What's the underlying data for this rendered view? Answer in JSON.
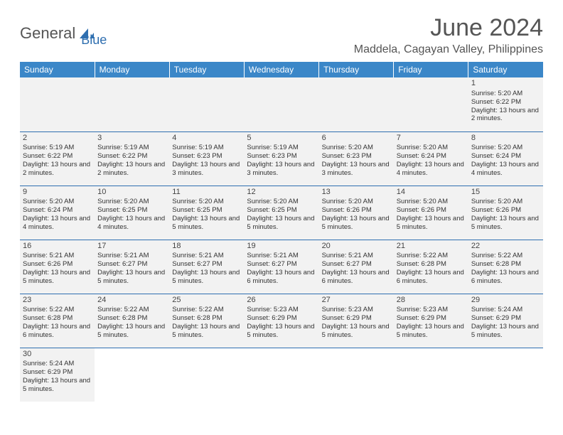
{
  "logo": {
    "part1": "General",
    "part2": "Blue"
  },
  "title": "June 2024",
  "location": "Maddela, Cagayan Valley, Philippines",
  "colors": {
    "header_bg": "#3b87c8",
    "header_text": "#ffffff",
    "row_bg": "#f2f2f2",
    "border": "#2f6fb0",
    "logo_gray": "#555555",
    "logo_blue": "#2f6fb0"
  },
  "weekdays": [
    "Sunday",
    "Monday",
    "Tuesday",
    "Wednesday",
    "Thursday",
    "Friday",
    "Saturday"
  ],
  "weeks": [
    [
      null,
      null,
      null,
      null,
      null,
      null,
      {
        "d": "1",
        "sr": "5:20 AM",
        "ss": "6:22 PM",
        "dl": "13 hours and 2 minutes."
      }
    ],
    [
      {
        "d": "2",
        "sr": "5:19 AM",
        "ss": "6:22 PM",
        "dl": "13 hours and 2 minutes."
      },
      {
        "d": "3",
        "sr": "5:19 AM",
        "ss": "6:22 PM",
        "dl": "13 hours and 2 minutes."
      },
      {
        "d": "4",
        "sr": "5:19 AM",
        "ss": "6:23 PM",
        "dl": "13 hours and 3 minutes."
      },
      {
        "d": "5",
        "sr": "5:19 AM",
        "ss": "6:23 PM",
        "dl": "13 hours and 3 minutes."
      },
      {
        "d": "6",
        "sr": "5:20 AM",
        "ss": "6:23 PM",
        "dl": "13 hours and 3 minutes."
      },
      {
        "d": "7",
        "sr": "5:20 AM",
        "ss": "6:24 PM",
        "dl": "13 hours and 4 minutes."
      },
      {
        "d": "8",
        "sr": "5:20 AM",
        "ss": "6:24 PM",
        "dl": "13 hours and 4 minutes."
      }
    ],
    [
      {
        "d": "9",
        "sr": "5:20 AM",
        "ss": "6:24 PM",
        "dl": "13 hours and 4 minutes."
      },
      {
        "d": "10",
        "sr": "5:20 AM",
        "ss": "6:25 PM",
        "dl": "13 hours and 4 minutes."
      },
      {
        "d": "11",
        "sr": "5:20 AM",
        "ss": "6:25 PM",
        "dl": "13 hours and 5 minutes."
      },
      {
        "d": "12",
        "sr": "5:20 AM",
        "ss": "6:25 PM",
        "dl": "13 hours and 5 minutes."
      },
      {
        "d": "13",
        "sr": "5:20 AM",
        "ss": "6:26 PM",
        "dl": "13 hours and 5 minutes."
      },
      {
        "d": "14",
        "sr": "5:20 AM",
        "ss": "6:26 PM",
        "dl": "13 hours and 5 minutes."
      },
      {
        "d": "15",
        "sr": "5:20 AM",
        "ss": "6:26 PM",
        "dl": "13 hours and 5 minutes."
      }
    ],
    [
      {
        "d": "16",
        "sr": "5:21 AM",
        "ss": "6:26 PM",
        "dl": "13 hours and 5 minutes."
      },
      {
        "d": "17",
        "sr": "5:21 AM",
        "ss": "6:27 PM",
        "dl": "13 hours and 5 minutes."
      },
      {
        "d": "18",
        "sr": "5:21 AM",
        "ss": "6:27 PM",
        "dl": "13 hours and 5 minutes."
      },
      {
        "d": "19",
        "sr": "5:21 AM",
        "ss": "6:27 PM",
        "dl": "13 hours and 6 minutes."
      },
      {
        "d": "20",
        "sr": "5:21 AM",
        "ss": "6:27 PM",
        "dl": "13 hours and 6 minutes."
      },
      {
        "d": "21",
        "sr": "5:22 AM",
        "ss": "6:28 PM",
        "dl": "13 hours and 6 minutes."
      },
      {
        "d": "22",
        "sr": "5:22 AM",
        "ss": "6:28 PM",
        "dl": "13 hours and 6 minutes."
      }
    ],
    [
      {
        "d": "23",
        "sr": "5:22 AM",
        "ss": "6:28 PM",
        "dl": "13 hours and 6 minutes."
      },
      {
        "d": "24",
        "sr": "5:22 AM",
        "ss": "6:28 PM",
        "dl": "13 hours and 5 minutes."
      },
      {
        "d": "25",
        "sr": "5:22 AM",
        "ss": "6:28 PM",
        "dl": "13 hours and 5 minutes."
      },
      {
        "d": "26",
        "sr": "5:23 AM",
        "ss": "6:29 PM",
        "dl": "13 hours and 5 minutes."
      },
      {
        "d": "27",
        "sr": "5:23 AM",
        "ss": "6:29 PM",
        "dl": "13 hours and 5 minutes."
      },
      {
        "d": "28",
        "sr": "5:23 AM",
        "ss": "6:29 PM",
        "dl": "13 hours and 5 minutes."
      },
      {
        "d": "29",
        "sr": "5:24 AM",
        "ss": "6:29 PM",
        "dl": "13 hours and 5 minutes."
      }
    ],
    [
      {
        "d": "30",
        "sr": "5:24 AM",
        "ss": "6:29 PM",
        "dl": "13 hours and 5 minutes."
      },
      null,
      null,
      null,
      null,
      null,
      null
    ]
  ],
  "labels": {
    "sunrise": "Sunrise:",
    "sunset": "Sunset:",
    "daylight": "Daylight:"
  }
}
